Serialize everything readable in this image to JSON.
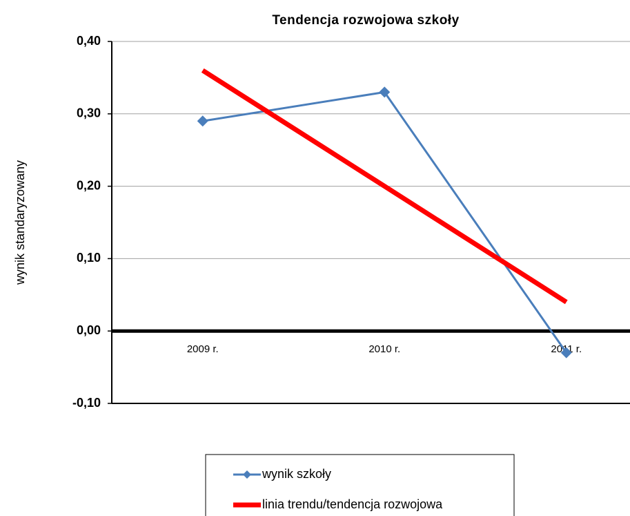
{
  "chart_data": {
    "type": "line",
    "title": "Tendencja rozwojowa szkoły",
    "y_label": "wynik standaryzowany",
    "categories": [
      "2009 r.",
      "2010 r.",
      "2011 r."
    ],
    "series": [
      {
        "name": "wynik szkoły",
        "color": "#4a7ebb",
        "values": [
          0.29,
          0.33,
          -0.03
        ],
        "marker": "diamond"
      },
      {
        "name": "linia trendu/tendencja rozwojowa",
        "color": "#ff0000",
        "values": [
          0.36,
          0.2,
          0.04
        ]
      }
    ],
    "ylim": [
      -0.1,
      0.4
    ],
    "yticks": [
      {
        "value": -0.1,
        "label": "-0,10"
      },
      {
        "value": 0,
        "label": "0,00"
      },
      {
        "value": 0.1,
        "label": "0,10"
      },
      {
        "value": 0.2,
        "label": "0,20"
      },
      {
        "value": 0.3,
        "label": "0,30"
      },
      {
        "value": 0.4,
        "label": "0,40"
      }
    ],
    "grid": true,
    "legend": "bottom"
  }
}
